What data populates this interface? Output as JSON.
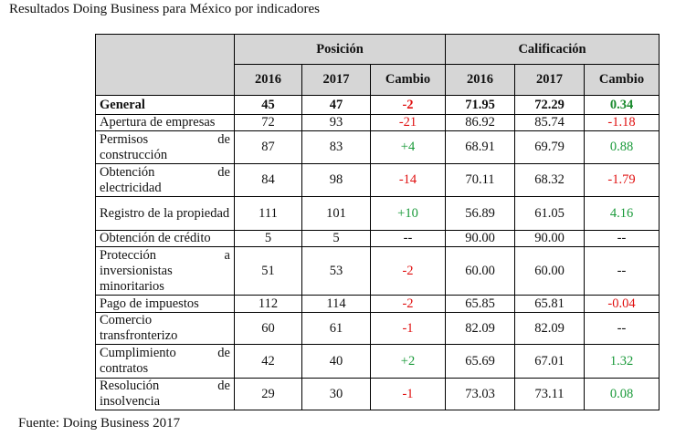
{
  "caption": "Resultados Doing Business para México por indicadores",
  "source": "Fuente: Doing Business 2017",
  "headers": {
    "posicion": "Posición",
    "calificacion": "Calificación",
    "y2016": "2016",
    "y2017": "2017",
    "cambio": "Cambio"
  },
  "colors": {
    "negative": "#e01010",
    "positive": "#1a9a3a",
    "header_bg": "#d6d6d6"
  },
  "rows": [
    {
      "label": "General",
      "p2016": "45",
      "p2017": "47",
      "pchange": "-2",
      "c2016": "71.95",
      "c2017": "72.29",
      "cchange": "0.34"
    },
    {
      "label": "Apertura de empresas",
      "p2016": "72",
      "p2017": "93",
      "pchange": "-21",
      "c2016": "86.92",
      "c2017": "85.74",
      "cchange": "-1.18"
    },
    {
      "label": "Permisos de construcción",
      "p2016": "87",
      "p2017": "83",
      "pchange": "+4",
      "c2016": "68.91",
      "c2017": "69.79",
      "cchange": "0.88"
    },
    {
      "label": "Obtención de electricidad",
      "p2016": "84",
      "p2017": "98",
      "pchange": "-14",
      "c2016": "70.11",
      "c2017": "68.32",
      "cchange": "-1.79"
    },
    {
      "label": "Registro de la propiedad",
      "p2016": "111",
      "p2017": "101",
      "pchange": "+10",
      "c2016": "56.89",
      "c2017": "61.05",
      "cchange": "4.16"
    },
    {
      "label": "Obtención de crédito",
      "p2016": "5",
      "p2017": "5",
      "pchange": "--",
      "c2016": "90.00",
      "c2017": "90.00",
      "cchange": "--"
    },
    {
      "label": "Protección a inversionistas minoritarios",
      "p2016": "51",
      "p2017": "53",
      "pchange": "-2",
      "c2016": "60.00",
      "c2017": "60.00",
      "cchange": "--"
    },
    {
      "label": "Pago de impuestos",
      "p2016": "112",
      "p2017": "114",
      "pchange": "-2",
      "c2016": "65.85",
      "c2017": "65.81",
      "cchange": "-0.04"
    },
    {
      "label": "Comercio transfronterizo",
      "p2016": "60",
      "p2017": "61",
      "pchange": "-1",
      "c2016": "82.09",
      "c2017": "82.09",
      "cchange": "--"
    },
    {
      "label": "Cumplimiento de contratos",
      "p2016": "42",
      "p2017": "40",
      "pchange": "+2",
      "c2016": "65.69",
      "c2017": "67.01",
      "cchange": "1.32"
    },
    {
      "label": "Resolución de insolvencia",
      "p2016": "29",
      "p2017": "30",
      "pchange": "-1",
      "c2016": "73.03",
      "c2017": "73.11",
      "cchange": "0.08"
    }
  ]
}
